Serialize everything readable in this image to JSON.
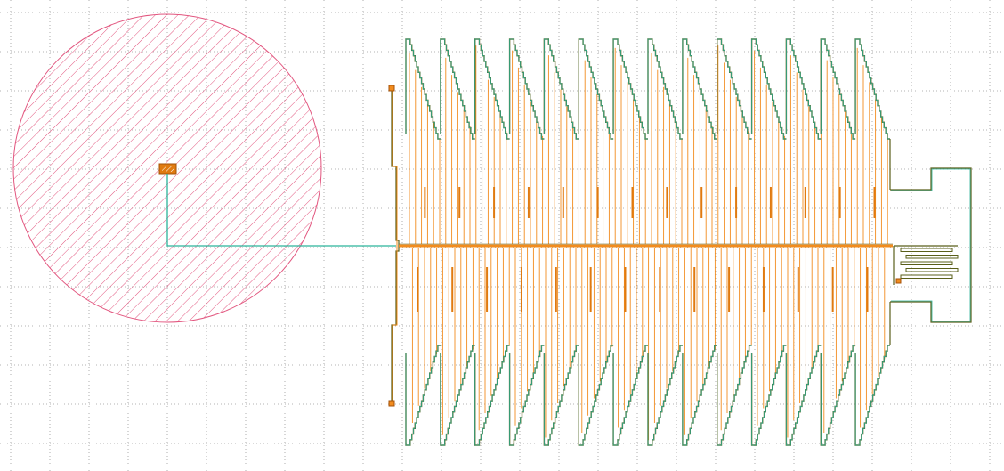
{
  "canvas": {
    "background": "#ffffff",
    "grid_color": "#9a9a9a",
    "grid_visible": true
  },
  "colors": {
    "pad_fill": "#e2567f",
    "pad_outline": "#e2567f",
    "feedline": "#2bb39a",
    "finger": "#f28c1e",
    "finger_outline": "#5a5f1a",
    "contact": "#e07a10"
  },
  "layout": {
    "comb_teeth": 14,
    "center_pad_label": "",
    "interdigitated_fingers": 5
  }
}
